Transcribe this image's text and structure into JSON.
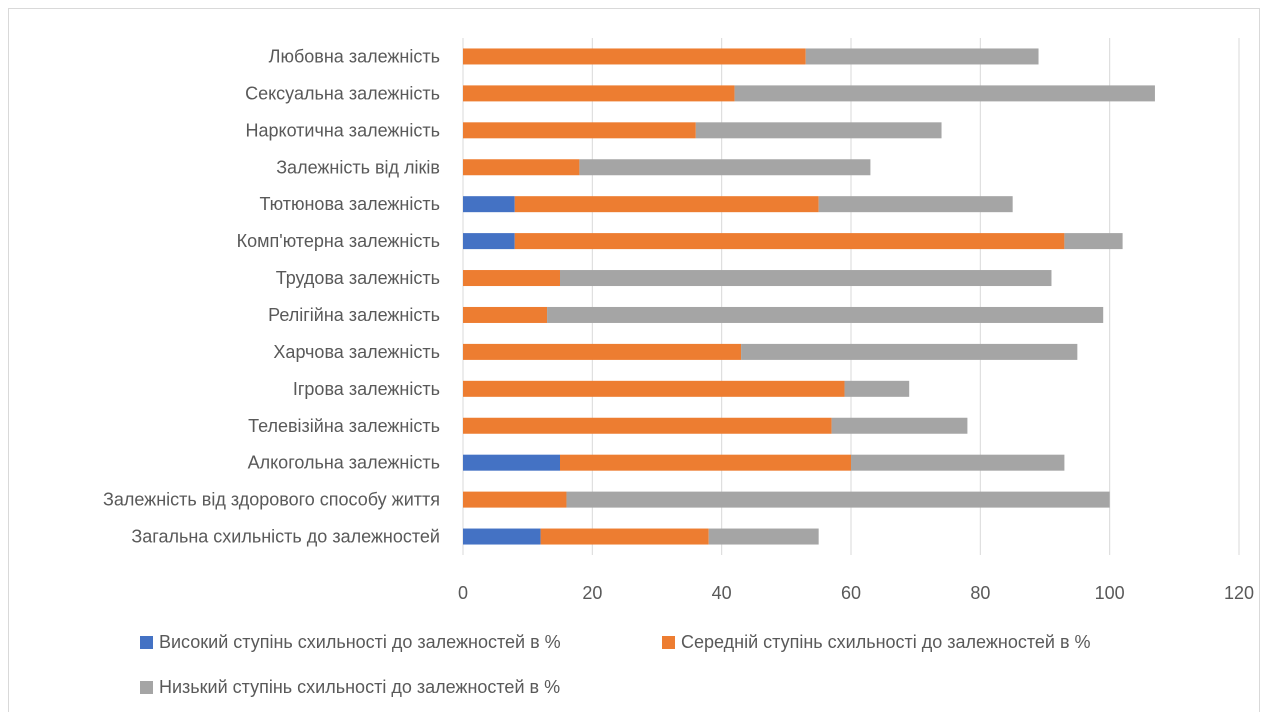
{
  "chart_data": {
    "type": "bar",
    "orientation": "horizontal",
    "stacked": true,
    "categories": [
      "Любовна залежність",
      "Сексуальна залежність",
      "Наркотична залежність",
      "Залежність від ліків",
      "Тютюнова залежність",
      "Комп'ютерна залежність",
      "Трудова залежність",
      "Релігійна залежність",
      "Харчова залежність",
      "Ігрова залежність",
      "Телевізійна залежність",
      "Алкогольна залежність",
      "Залежність від здорового способу життя",
      "Загальна схильність до залежностей"
    ],
    "series": [
      {
        "name": "Високий ступінь схильності до залежностей в %",
        "color": "#4472c4",
        "values": [
          0,
          0,
          0,
          0,
          8,
          8,
          0,
          0,
          0,
          0,
          0,
          15,
          0,
          12
        ]
      },
      {
        "name": "Середній ступінь схильності до залежностей в %",
        "color": "#ed7d31",
        "values": [
          53,
          42,
          36,
          18,
          47,
          85,
          15,
          13,
          43,
          59,
          57,
          45,
          16,
          26
        ]
      },
      {
        "name": "Низький ступінь схильності до залежностей в %",
        "color": "#a5a5a5",
        "values": [
          36,
          65,
          38,
          45,
          30,
          9,
          76,
          86,
          52,
          10,
          21,
          33,
          84,
          17
        ]
      }
    ],
    "xlim": [
      0,
      120
    ],
    "xticks": [
      "0",
      "20",
      "40",
      "60",
      "80",
      "100",
      "120"
    ],
    "grid": true,
    "legend": "bottom"
  }
}
